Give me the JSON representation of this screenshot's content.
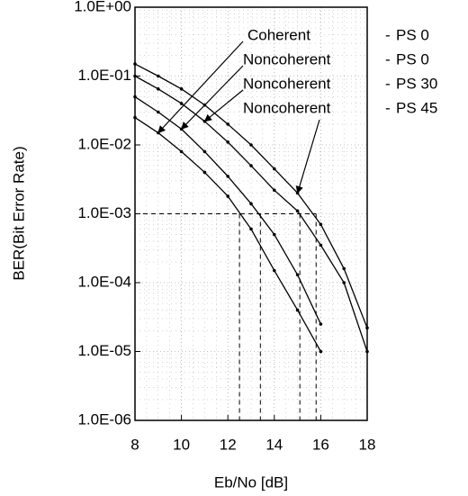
{
  "chart_data": {
    "type": "line",
    "xlabel": "Eb/No [dB]",
    "ylabel": "BER(Bit Error Rate)",
    "x": [
      8,
      9,
      10,
      11,
      12,
      13,
      14,
      15,
      16,
      17,
      18
    ],
    "series": [
      {
        "name": "Coherent",
        "ps_label": "PS  0",
        "color": "#000000",
        "values": [
          0.025,
          0.015,
          0.008,
          0.004,
          0.0018,
          0.0006,
          0.00015,
          4e-05,
          1e-05,
          null,
          null
        ]
      },
      {
        "name": "Noncoherent",
        "ps_label": "PS  0",
        "color": "#000000",
        "values": [
          0.05,
          0.03,
          0.017,
          0.008,
          0.0035,
          0.0014,
          0.0005,
          0.00013,
          2.5e-05,
          null,
          null
        ]
      },
      {
        "name": "Noncoherent",
        "ps_label": "PS 30",
        "color": "#000000",
        "values": [
          0.1,
          0.065,
          0.04,
          0.022,
          0.011,
          0.005,
          0.0022,
          0.0011,
          0.00035,
          0.0001,
          1e-05
        ]
      },
      {
        "name": "Noncoherent",
        "ps_label": "PS 45",
        "color": "#000000",
        "values": [
          0.15,
          0.1,
          0.065,
          0.038,
          0.02,
          0.01,
          0.0045,
          0.002,
          0.0007,
          0.00016,
          2.2e-05
        ]
      }
    ],
    "reference_y": 0.001,
    "reference_x": [
      12.5,
      13.4,
      15.1,
      15.8
    ],
    "xlim": [
      8,
      18
    ],
    "xticks": [
      8,
      10,
      12,
      14,
      16,
      18
    ],
    "ylim": [
      1e-06,
      1
    ],
    "log_y": true,
    "grid": true,
    "yticks": [
      {
        "value": 1,
        "label": "1.0E+00"
      },
      {
        "value": 0.1,
        "label": "1.0E-01"
      },
      {
        "value": 0.01,
        "label": "1.0E-02"
      },
      {
        "value": 0.001,
        "label": "1.0E-03"
      },
      {
        "value": 0.0001,
        "label": "1.0E-04"
      },
      {
        "value": 1e-05,
        "label": "1.0E-05"
      },
      {
        "value": 1e-06,
        "label": "1.0E-06"
      }
    ]
  }
}
